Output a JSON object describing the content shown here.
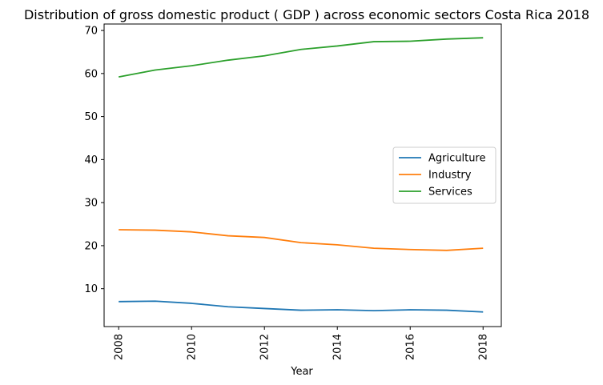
{
  "chart_data": {
    "type": "line",
    "title": "Distribution of gross domestic product ( GDP ) across economic sectors Costa Rica 2018",
    "xlabel": "Year",
    "ylabel": "",
    "x": [
      2008,
      2009,
      2010,
      2011,
      2012,
      2013,
      2014,
      2015,
      2016,
      2017,
      2018
    ],
    "x_ticks": [
      "2008",
      "2010",
      "2012",
      "2014",
      "2016",
      "2018"
    ],
    "y_ticks": [
      "10",
      "20",
      "30",
      "40",
      "50",
      "60",
      "70"
    ],
    "xlim": [
      2007.6,
      2018.5
    ],
    "ylim": [
      1.2,
      71.5
    ],
    "grid": false,
    "legend_position": "center-right",
    "series": [
      {
        "name": "Agriculture",
        "color": "#1f77b4",
        "values": [
          7.0,
          7.1,
          6.6,
          5.8,
          5.4,
          5.0,
          5.1,
          4.9,
          5.1,
          5.0,
          4.6
        ]
      },
      {
        "name": "Industry",
        "color": "#ff7f0e",
        "values": [
          23.7,
          23.6,
          23.2,
          22.3,
          21.9,
          20.7,
          20.2,
          19.4,
          19.1,
          18.9,
          19.4
        ]
      },
      {
        "name": "Services",
        "color": "#2ca02c",
        "values": [
          59.2,
          60.8,
          61.8,
          63.1,
          64.1,
          65.6,
          66.4,
          67.4,
          67.5,
          68.0,
          68.3
        ]
      }
    ]
  }
}
